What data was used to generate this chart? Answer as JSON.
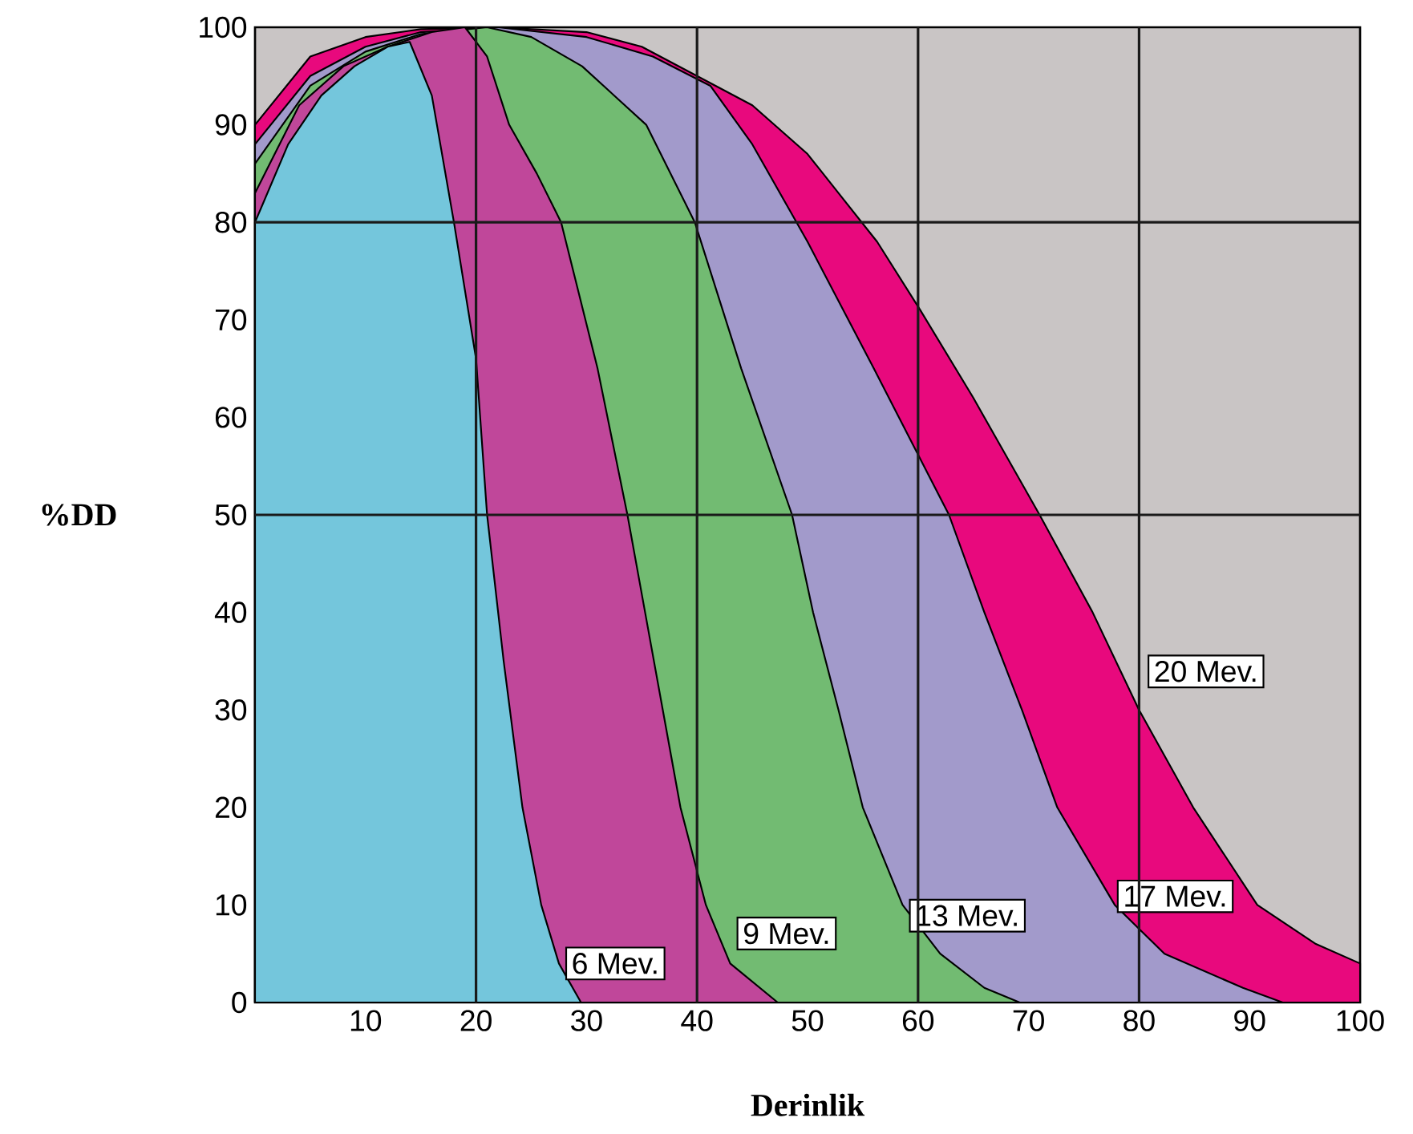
{
  "chart_data": {
    "type": "area",
    "xlabel": "Derinlik",
    "ylabel": "%DD",
    "xlim": [
      0,
      100
    ],
    "ylim": [
      0,
      100
    ],
    "xticks": [
      10,
      20,
      30,
      40,
      50,
      60,
      70,
      80,
      90,
      100
    ],
    "yticks": [
      0,
      10,
      20,
      30,
      40,
      50,
      60,
      70,
      80,
      90,
      100
    ],
    "marker": "none",
    "series": [
      {
        "name": "6 Mev.",
        "color": "#74c6dc",
        "x": [
          0,
          3,
          6,
          9,
          12,
          14,
          16,
          18,
          20,
          21,
          22.5,
          24.2,
          25.9,
          27.5,
          29.5
        ],
        "values": [
          80,
          88,
          93,
          96,
          98,
          98.5,
          93,
          80,
          66,
          50,
          35,
          20,
          10,
          4,
          0
        ]
      },
      {
        "name": "9 Mev.",
        "color": "#c0479a",
        "x": [
          0,
          4,
          8,
          12,
          16,
          19,
          21,
          23,
          25.5,
          27.7,
          31,
          33.7,
          35.3,
          36.9,
          38.5,
          40.8,
          43,
          47.3
        ],
        "values": [
          83,
          92,
          96,
          98,
          99.5,
          100,
          97,
          90,
          85,
          80,
          65,
          50,
          40,
          30,
          20,
          10,
          4,
          0
        ]
      },
      {
        "name": "13 Mev.",
        "color": "#72bb72",
        "x": [
          0,
          5,
          10,
          15,
          21,
          25,
          29.6,
          35.4,
          39.8,
          44,
          48.6,
          50.5,
          52.8,
          55,
          58.6,
          62,
          66,
          69.2
        ],
        "values": [
          86,
          94,
          97.5,
          99.3,
          100,
          99,
          96,
          90,
          80,
          65,
          50,
          40,
          30,
          20,
          10,
          5,
          1.5,
          0
        ]
      },
      {
        "name": "17 Mev.",
        "color": "#a29acb",
        "x": [
          0,
          5,
          10,
          15,
          22,
          30,
          36,
          41.2,
          45,
          50,
          56,
          62.8,
          66,
          69.4,
          72.6,
          77.8,
          82.3,
          89.4,
          93
        ],
        "values": [
          88,
          95,
          98,
          99.5,
          100,
          99,
          97,
          94,
          88,
          78,
          65,
          50,
          40,
          30,
          20,
          10,
          5,
          1.5,
          0
        ]
      },
      {
        "name": "20 Mev.",
        "color": "#e8097d",
        "x": [
          0,
          5,
          10,
          15,
          22,
          30,
          35,
          40,
          45,
          50,
          56.3,
          60.2,
          65,
          71,
          75.8,
          80,
          84.9,
          90.7,
          96,
          100
        ],
        "values": [
          90,
          97,
          99,
          99.8,
          100,
          99.5,
          98,
          95,
          92,
          87,
          78,
          71,
          62,
          50,
          40,
          30,
          20,
          10,
          6,
          4
        ]
      }
    ],
    "ref_lines": [
      {
        "axis": "x",
        "value": 20,
        "color": "#1a1a1a"
      },
      {
        "axis": "x",
        "value": 40,
        "color": "#1a1a1a"
      },
      {
        "axis": "x",
        "value": 60,
        "color": "#1a1a1a"
      },
      {
        "axis": "x",
        "value": 80,
        "color": "#1a1a1a"
      },
      {
        "axis": "y",
        "value": 50,
        "color": "#1a1a1a"
      },
      {
        "axis": "y",
        "value": 80,
        "color": "#1a1a1a"
      }
    ]
  }
}
